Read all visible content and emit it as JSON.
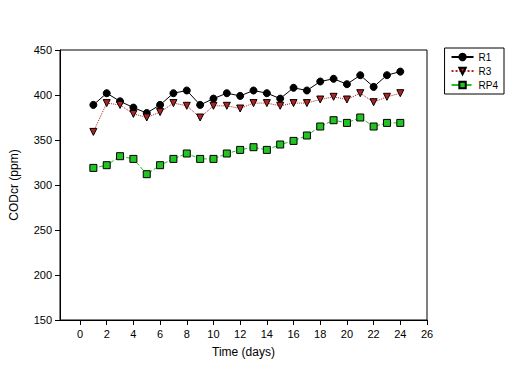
{
  "chart_data": {
    "type": "line",
    "x_label": "Time (days)",
    "y_label": "CODcr (ppm)",
    "x": [
      1,
      2,
      3,
      4,
      5,
      6,
      7,
      8,
      9,
      10,
      11,
      12,
      13,
      14,
      15,
      16,
      17,
      18,
      19,
      20,
      21,
      22,
      23,
      24
    ],
    "series": [
      {
        "name": "R1",
        "color": "#000000",
        "marker": "circle",
        "line_style": "solid",
        "values": [
          389,
          402,
          393,
          386,
          380,
          389,
          402,
          405,
          389,
          396,
          402,
          399,
          405,
          402,
          396,
          408,
          405,
          415,
          418,
          412,
          422,
          409,
          422,
          426
        ]
      },
      {
        "name": "R3",
        "color": "#b22222",
        "marker": "triangle-down",
        "line_style": "dotted",
        "values": [
          359,
          391,
          389,
          379,
          375,
          381,
          391,
          388,
          375,
          388,
          388,
          385,
          391,
          391,
          388,
          391,
          391,
          395,
          398,
          395,
          402,
          392,
          398,
          402
        ]
      },
      {
        "name": "RP4",
        "color": "#22c322",
        "marker": "square",
        "line_style": "dashed",
        "values": [
          319,
          322,
          332,
          329,
          312,
          322,
          329,
          335,
          329,
          329,
          335,
          339,
          342,
          339,
          345,
          349,
          355,
          365,
          372,
          369,
          375,
          365,
          369,
          369
        ]
      }
    ],
    "xlim": [
      -1.5,
      26
    ],
    "xticks": [
      0,
      2,
      4,
      6,
      8,
      10,
      12,
      14,
      16,
      18,
      20,
      22,
      24,
      26
    ],
    "ylim": [
      150,
      450
    ],
    "yticks": [
      150,
      200,
      250,
      300,
      350,
      400,
      450
    ],
    "grid": false,
    "legend": "right"
  }
}
